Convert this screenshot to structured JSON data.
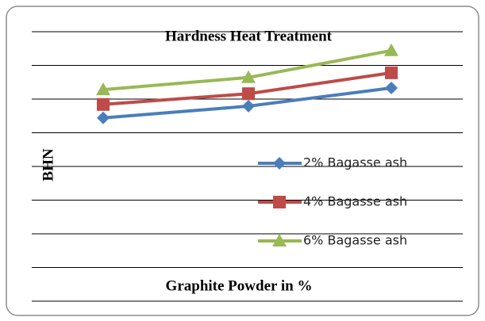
{
  "chart_data": {
    "type": "line",
    "title": "Hardness Heat Treatment",
    "x_label": "Graphite Powder in %",
    "y_label": "BHN",
    "categories": [
      null,
      null,
      null
    ],
    "ylim": [
      0,
      8
    ],
    "yticks": [
      0,
      1,
      2,
      3,
      4,
      5,
      6,
      7,
      8
    ],
    "grid": true,
    "legend": "right",
    "series": [
      {
        "name": "2% Bagasse ash",
        "color": "#4a7ebb",
        "marker": "diamond",
        "values": [
          5.44,
          5.79,
          6.33
        ]
      },
      {
        "name": "4% Bagasse ash",
        "color": "#be4b48",
        "marker": "square",
        "values": [
          5.84,
          6.16,
          6.78
        ]
      },
      {
        "name": "6% Bagasse ash",
        "color": "#98b954",
        "marker": "triangle",
        "values": [
          6.28,
          6.64,
          7.44
        ]
      }
    ]
  }
}
